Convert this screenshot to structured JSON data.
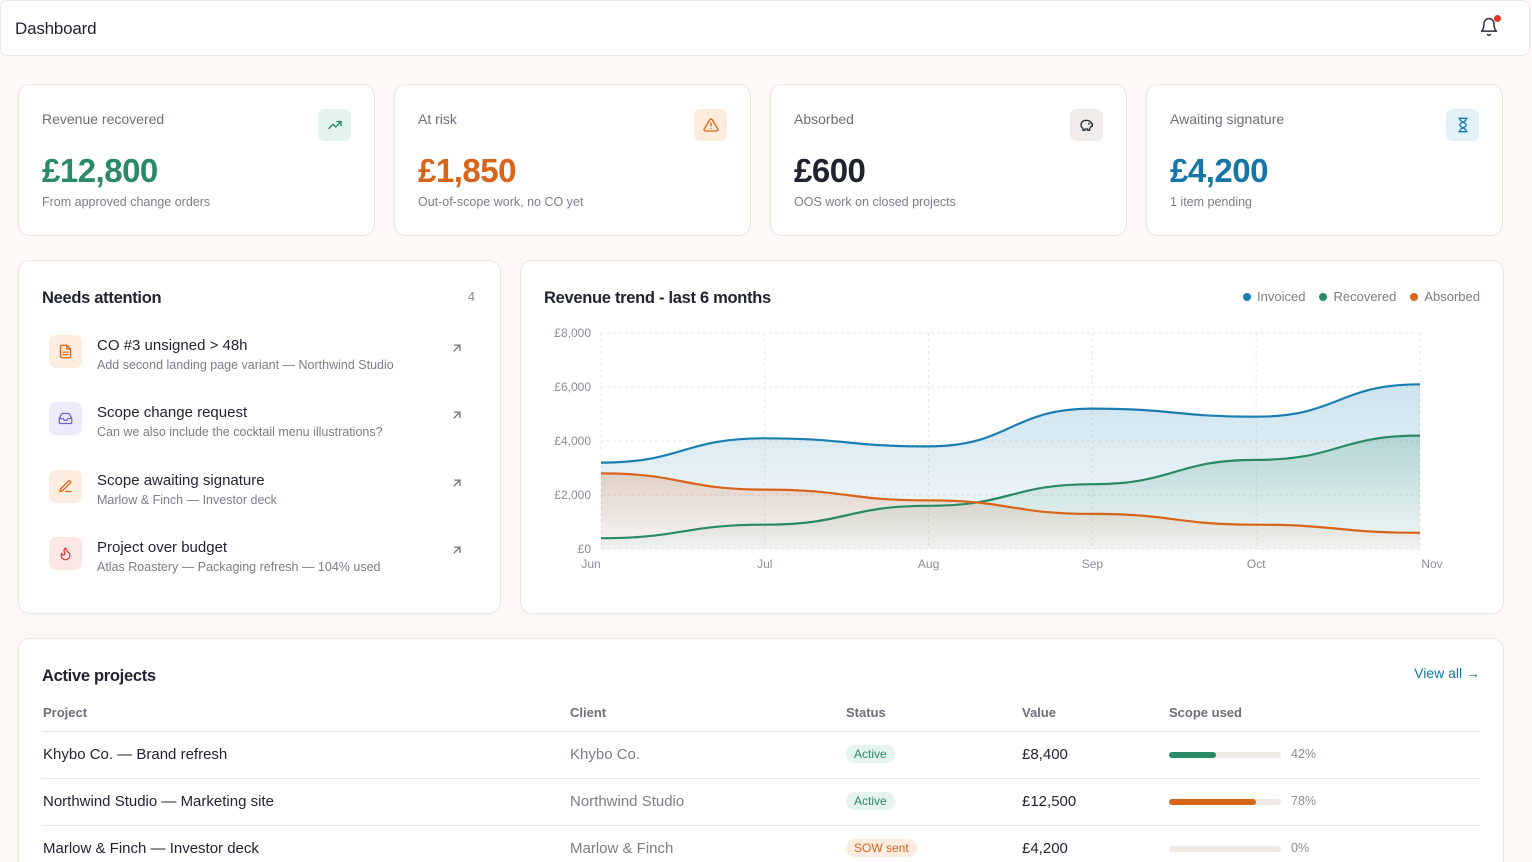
{
  "header": {
    "title": "Dashboard",
    "notification_icon": "bell-icon",
    "has_notification": true
  },
  "kpis": [
    {
      "label": "Revenue recovered",
      "value": "£12,800",
      "sub": "From approved change orders",
      "color": "#2a8a66",
      "icon": "trending-up-icon",
      "icon_bg": "#e4f4ec"
    },
    {
      "label": "At risk",
      "value": "£1,850",
      "sub": "Out-of-scope work, no CO yet",
      "color": "#d8641a",
      "icon": "alert-triangle-icon",
      "icon_bg": "#fdebdc"
    },
    {
      "label": "Absorbed",
      "value": "£600",
      "sub": "OOS work on closed projects",
      "color": "#1f2330",
      "icon": "piggy-bank-icon",
      "icon_bg": "#efecea"
    },
    {
      "label": "Awaiting signature",
      "value": "£4,200",
      "sub": "1 item pending",
      "color": "#1677a6",
      "icon": "hourglass-icon",
      "icon_bg": "#e2f1f8"
    }
  ],
  "attention": {
    "title": "Needs attention",
    "count": "4",
    "items": [
      {
        "title": "CO #3 unsigned > 48h",
        "subtitle": "Add second landing page variant — Northwind Studio",
        "icon": "document-icon",
        "icon_color": "#d8641a",
        "icon_bg": "#fdece0"
      },
      {
        "title": "Scope change request",
        "subtitle": "Can we also include the cocktail menu illustrations?",
        "icon": "inbox-icon",
        "icon_color": "#6a63c9",
        "icon_bg": "#ecebfa"
      },
      {
        "title": "Scope awaiting signature",
        "subtitle": "Marlow & Finch — Investor deck",
        "icon": "pen-icon",
        "icon_color": "#d8641a",
        "icon_bg": "#fdece0"
      },
      {
        "title": "Project over budget",
        "subtitle": "Atlas Roastery — Packaging refresh — 104% used",
        "icon": "flame-icon",
        "icon_color": "#d6362d",
        "icon_bg": "#fce7e5"
      }
    ]
  },
  "chart_data": {
    "type": "area",
    "title": "Revenue trend - last 6 months",
    "categories": [
      "Jun",
      "Jul",
      "Aug",
      "Sep",
      "Oct",
      "Nov"
    ],
    "y_ticks": [
      "£0",
      "£2,000",
      "£4,000",
      "£6,000",
      "£8,000"
    ],
    "ylim": [
      0,
      8000
    ],
    "grid": true,
    "legend_position": "top-right",
    "series": [
      {
        "name": "Invoiced",
        "color": "#1a7fb0",
        "values": [
          3200,
          4100,
          3800,
          5200,
          4900,
          6100
        ]
      },
      {
        "name": "Recovered",
        "color": "#2a8a66",
        "values": [
          400,
          900,
          1600,
          2400,
          3300,
          4200
        ]
      },
      {
        "name": "Absorbed",
        "color": "#d8641a",
        "values": [
          2800,
          2200,
          1800,
          1300,
          900,
          600
        ]
      }
    ]
  },
  "projects": {
    "title": "Active projects",
    "view_all": "View all →",
    "columns": [
      "Project",
      "Client",
      "Status",
      "Value",
      "Scope used"
    ],
    "rows": [
      {
        "project": "Khybo Co. — Brand refresh",
        "client": "Khybo Co.",
        "status": "Active",
        "status_kind": "active",
        "value": "£8,400",
        "scope_pct": 42,
        "scope_label": "42%",
        "bar_color": "#2a8a66"
      },
      {
        "project": "Northwind Studio — Marketing site",
        "client": "Northwind Studio",
        "status": "Active",
        "status_kind": "active",
        "value": "£12,500",
        "scope_pct": 78,
        "scope_label": "78%",
        "bar_color": "#d8641a"
      },
      {
        "project": "Marlow & Finch — Investor deck",
        "client": "Marlow & Finch",
        "status": "SOW sent",
        "status_kind": "sow",
        "value": "£4,200",
        "scope_pct": 0,
        "scope_label": "0%",
        "bar_color": "#2a8a66"
      }
    ]
  }
}
